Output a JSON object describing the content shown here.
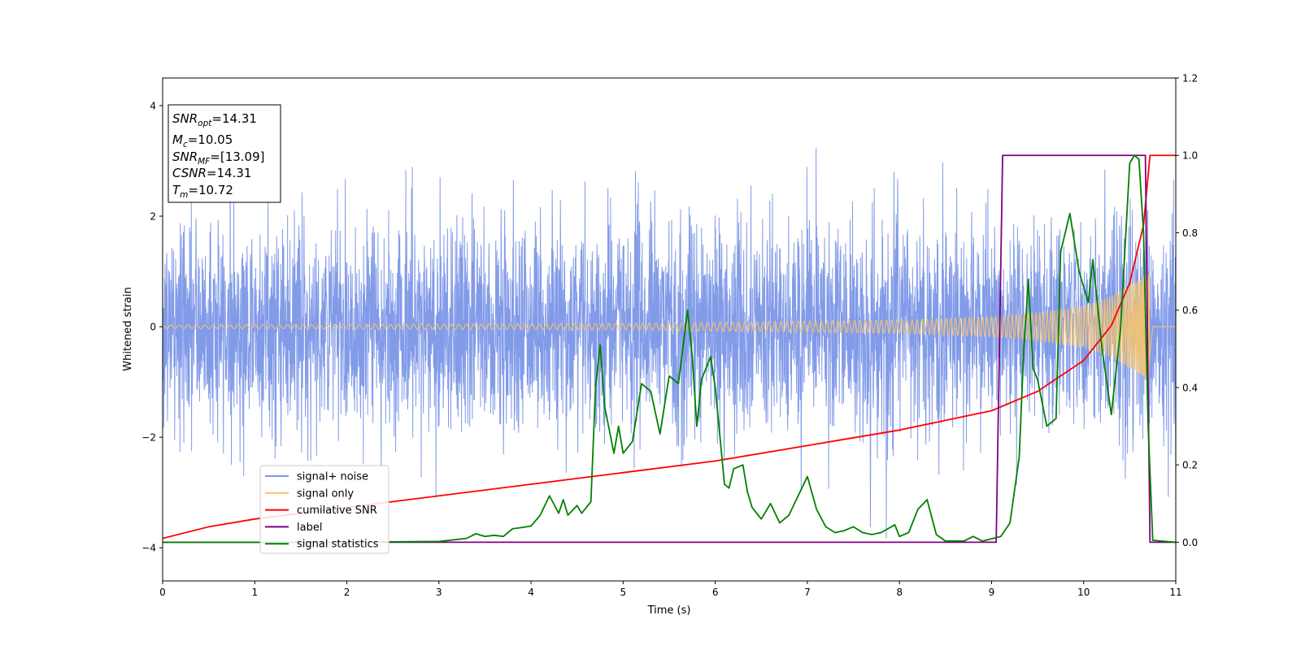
{
  "chart_data": {
    "type": "line",
    "title": "",
    "xlabel": "Time (s)",
    "ylabel": "Whitened strain",
    "xlim": [
      0,
      11
    ],
    "ylim": [
      -4.6,
      4.5
    ],
    "y2lim": [
      -0.1,
      1.2
    ],
    "xticks": [
      "0",
      "1",
      "2",
      "3",
      "4",
      "5",
      "6",
      "7",
      "8",
      "9",
      "10",
      "11"
    ],
    "yticks": [
      "4",
      "2",
      "0",
      "−2",
      "−4"
    ],
    "y2ticks": [
      "1.2",
      "1.0",
      "0.8",
      "0.6",
      "0.4",
      "0.2",
      "0.0"
    ],
    "grid": false,
    "legend_position": "lower-left",
    "annotation_lines": [
      {
        "sym": "SNR",
        "sub": "opt",
        "val": "=14.31"
      },
      {
        "sym": "M",
        "sub": "c",
        "val": "=10.05"
      },
      {
        "sym": "SNR",
        "sub": "MF",
        "val": "=[13.09]"
      },
      {
        "sym": "CSNR",
        "sub": "",
        "val": "=14.31"
      },
      {
        "sym": "T",
        "sub": "m",
        "val": "=10.72"
      }
    ],
    "series": [
      {
        "name": "signal+ noise",
        "color": "#7b96e8",
        "axis": "left",
        "kind": "noise",
        "noise_sigma": 0.95,
        "range_min": -4.1,
        "range_max": 4.1
      },
      {
        "name": "signal only",
        "color": "#f5c46f",
        "axis": "left",
        "kind": "chirp",
        "merger_time": 10.72,
        "amplitude_envelope": [
          [
            0,
            0.03
          ],
          [
            5,
            0.06
          ],
          [
            8,
            0.12
          ],
          [
            9,
            0.18
          ],
          [
            9.5,
            0.25
          ],
          [
            10,
            0.38
          ],
          [
            10.3,
            0.55
          ],
          [
            10.6,
            0.85
          ],
          [
            10.72,
            1.0
          ],
          [
            10.75,
            0
          ]
        ]
      },
      {
        "name": "cumilative SNR",
        "color": "#ff0000",
        "axis": "right",
        "points": [
          [
            0,
            0.01
          ],
          [
            0.5,
            0.04
          ],
          [
            1,
            0.06
          ],
          [
            2,
            0.09
          ],
          [
            3,
            0.12
          ],
          [
            4,
            0.15
          ],
          [
            5,
            0.18
          ],
          [
            6,
            0.21
          ],
          [
            7,
            0.25
          ],
          [
            7.5,
            0.27
          ],
          [
            8,
            0.29
          ],
          [
            8.5,
            0.315
          ],
          [
            9,
            0.34
          ],
          [
            9.5,
            0.39
          ],
          [
            10,
            0.47
          ],
          [
            10.3,
            0.56
          ],
          [
            10.5,
            0.67
          ],
          [
            10.65,
            0.82
          ],
          [
            10.72,
            1.0
          ],
          [
            11,
            1.0
          ]
        ]
      },
      {
        "name": "label",
        "color": "#800080",
        "axis": "right",
        "points": [
          [
            0,
            0
          ],
          [
            9.05,
            0
          ],
          [
            9.12,
            1.0
          ],
          [
            10.67,
            1.0
          ],
          [
            10.72,
            0
          ],
          [
            11,
            0
          ]
        ]
      },
      {
        "name": "signal statistics",
        "color": "#008000",
        "axis": "right",
        "points": [
          [
            0,
            0
          ],
          [
            1,
            0
          ],
          [
            2,
            0
          ],
          [
            3,
            0.002
          ],
          [
            3.3,
            0.01
          ],
          [
            3.4,
            0.022
          ],
          [
            3.5,
            0.015
          ],
          [
            3.6,
            0.018
          ],
          [
            3.7,
            0.015
          ],
          [
            3.8,
            0.035
          ],
          [
            3.9,
            0.038
          ],
          [
            4.0,
            0.042
          ],
          [
            4.1,
            0.07
          ],
          [
            4.2,
            0.12
          ],
          [
            4.3,
            0.075
          ],
          [
            4.35,
            0.11
          ],
          [
            4.4,
            0.07
          ],
          [
            4.5,
            0.095
          ],
          [
            4.55,
            0.075
          ],
          [
            4.65,
            0.105
          ],
          [
            4.7,
            0.4
          ],
          [
            4.75,
            0.51
          ],
          [
            4.8,
            0.35
          ],
          [
            4.9,
            0.23
          ],
          [
            4.95,
            0.3
          ],
          [
            5.0,
            0.23
          ],
          [
            5.1,
            0.26
          ],
          [
            5.2,
            0.41
          ],
          [
            5.3,
            0.39
          ],
          [
            5.4,
            0.28
          ],
          [
            5.5,
            0.43
          ],
          [
            5.6,
            0.41
          ],
          [
            5.7,
            0.6
          ],
          [
            5.75,
            0.48
          ],
          [
            5.8,
            0.3
          ],
          [
            5.85,
            0.42
          ],
          [
            5.95,
            0.48
          ],
          [
            6.0,
            0.4
          ],
          [
            6.1,
            0.15
          ],
          [
            6.15,
            0.14
          ],
          [
            6.2,
            0.19
          ],
          [
            6.3,
            0.2
          ],
          [
            6.35,
            0.13
          ],
          [
            6.4,
            0.09
          ],
          [
            6.5,
            0.06
          ],
          [
            6.6,
            0.1
          ],
          [
            6.7,
            0.05
          ],
          [
            6.8,
            0.07
          ],
          [
            6.9,
            0.12
          ],
          [
            7.0,
            0.17
          ],
          [
            7.1,
            0.085
          ],
          [
            7.2,
            0.04
          ],
          [
            7.3,
            0.025
          ],
          [
            7.4,
            0.03
          ],
          [
            7.5,
            0.04
          ],
          [
            7.6,
            0.025
          ],
          [
            7.7,
            0.02
          ],
          [
            7.8,
            0.025
          ],
          [
            7.95,
            0.045
          ],
          [
            8.0,
            0.015
          ],
          [
            8.1,
            0.025
          ],
          [
            8.2,
            0.085
          ],
          [
            8.3,
            0.11
          ],
          [
            8.4,
            0.02
          ],
          [
            8.5,
            0.003
          ],
          [
            8.7,
            0.003
          ],
          [
            8.8,
            0.015
          ],
          [
            8.9,
            0.003
          ],
          [
            9.1,
            0.015
          ],
          [
            9.2,
            0.05
          ],
          [
            9.3,
            0.22
          ],
          [
            9.35,
            0.5
          ],
          [
            9.4,
            0.68
          ],
          [
            9.45,
            0.45
          ],
          [
            9.5,
            0.42
          ],
          [
            9.6,
            0.3
          ],
          [
            9.7,
            0.32
          ],
          [
            9.75,
            0.75
          ],
          [
            9.85,
            0.85
          ],
          [
            9.95,
            0.7
          ],
          [
            10.05,
            0.62
          ],
          [
            10.1,
            0.73
          ],
          [
            10.2,
            0.5
          ],
          [
            10.3,
            0.33
          ],
          [
            10.4,
            0.55
          ],
          [
            10.5,
            0.98
          ],
          [
            10.55,
            1.0
          ],
          [
            10.6,
            0.99
          ],
          [
            10.65,
            0.8
          ],
          [
            10.7,
            0.3
          ],
          [
            10.75,
            0.005
          ],
          [
            11,
            0
          ]
        ]
      }
    ]
  }
}
